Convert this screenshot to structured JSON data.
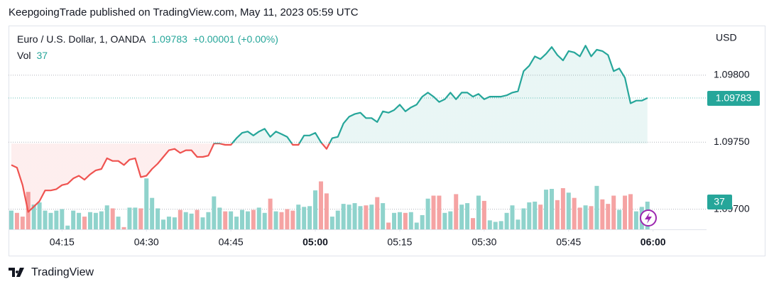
{
  "header": "KeepgoingTrade published on TradingView.com, May 11, 2023 05:59 UTC",
  "footer": "TradingView",
  "chart_data": {
    "type": "line",
    "currency": "USD",
    "change": "+0.00001",
    "change_pct": "(+0.00%)",
    "baseline": 1.09749,
    "color_below": "#ef5350",
    "grid": true,
    "x": [
      246,
      247,
      248,
      249,
      250,
      251,
      252,
      253,
      254,
      255,
      256,
      257,
      258,
      259,
      260,
      261,
      262,
      263,
      264,
      265,
      266,
      267,
      268,
      269,
      270,
      271,
      272,
      273,
      274,
      275,
      276,
      277,
      278,
      279,
      280,
      281,
      282,
      283,
      284,
      285,
      286,
      287,
      288,
      289,
      290,
      291,
      292,
      293,
      294,
      295,
      296,
      297,
      298,
      299,
      300,
      301,
      302,
      303,
      304,
      305,
      306,
      307,
      308,
      309,
      310,
      311,
      312,
      313,
      314,
      315,
      316,
      317,
      318,
      319,
      320,
      321,
      322,
      323,
      324,
      325,
      326,
      327,
      328,
      329,
      330,
      331,
      332,
      333,
      334,
      335,
      336,
      337,
      338,
      339,
      340,
      341,
      342,
      343,
      344,
      345,
      346,
      347,
      348,
      349,
      350,
      351,
      352,
      353,
      354,
      355,
      356,
      357,
      358,
      359
    ],
    "xlim": [
      245.5,
      369.5
    ],
    "xticks": [
      {
        "value": 255,
        "label": "04:15"
      },
      {
        "value": 270,
        "label": "04:30"
      },
      {
        "value": 285,
        "label": "04:45"
      },
      {
        "value": 300,
        "label": "05:00"
      },
      {
        "value": 315,
        "label": "05:15"
      },
      {
        "value": 330,
        "label": "05:30"
      },
      {
        "value": 345,
        "label": "05:45"
      },
      {
        "value": 360,
        "label": "06:00"
      }
    ],
    "ylim": [
      1.09685,
      1.09837
    ],
    "yticks": [
      {
        "value": 1.098,
        "label": "1.09800"
      },
      {
        "value": 1.0975,
        "label": "1.09750"
      },
      {
        "value": 1.097,
        "label": "1.09700"
      }
    ],
    "y2lim": [
      0,
      272
    ],
    "series": [
      {
        "name": "Euro / U.S. Dollar, 1, OANDA",
        "color": "#26a69a",
        "values": [
          1.09733,
          1.09731,
          1.09718,
          1.09698,
          1.09702,
          1.09706,
          1.09714,
          1.09714,
          1.09715,
          1.09718,
          1.09719,
          1.09723,
          1.09725,
          1.09722,
          1.09726,
          1.09729,
          1.0973,
          1.09738,
          1.09736,
          1.09736,
          1.09733,
          1.09737,
          1.09738,
          1.09724,
          1.09725,
          1.0973,
          1.09734,
          1.09739,
          1.09744,
          1.09745,
          1.09742,
          1.09744,
          1.09744,
          1.09739,
          1.09739,
          1.0974,
          1.09749,
          1.09749,
          1.09748,
          1.09748,
          1.09753,
          1.09757,
          1.09758,
          1.09755,
          1.09758,
          1.0976,
          1.09754,
          1.09758,
          1.09756,
          1.09754,
          1.09748,
          1.09748,
          1.09755,
          1.09755,
          1.09757,
          1.0975,
          1.09745,
          1.09753,
          1.09754,
          1.09764,
          1.09769,
          1.09771,
          1.09772,
          1.09768,
          1.09768,
          1.09765,
          1.09773,
          1.09772,
          1.09774,
          1.09778,
          1.09773,
          1.09776,
          1.09778,
          1.09784,
          1.09787,
          1.09784,
          1.0978,
          1.09782,
          1.09787,
          1.09782,
          1.09787,
          1.09787,
          1.09784,
          1.09786,
          1.09782,
          1.09784,
          1.09784,
          1.09784,
          1.09785,
          1.09787,
          1.09788,
          1.09803,
          1.09807,
          1.09814,
          1.09812,
          1.09816,
          1.09821,
          1.09815,
          1.09811,
          1.09818,
          1.09817,
          1.09814,
          1.09822,
          1.09814,
          1.09819,
          1.09818,
          1.09815,
          1.09803,
          1.09805,
          1.09798,
          1.09779,
          1.09781,
          1.09781,
          1.09783
        ]
      },
      {
        "name": "Vol",
        "type": "bar",
        "axis": "y2",
        "color": "#8fd3cc",
        "color_down": "#f5a3a3",
        "values": [
          25,
          22,
          17,
          50,
          33,
          36,
          25,
          22,
          25,
          27,
          5,
          25,
          22,
          17,
          23,
          22,
          24,
          32,
          28,
          17,
          3,
          29,
          29,
          28,
          68,
          42,
          28,
          13,
          17,
          16,
          26,
          23,
          21,
          26,
          16,
          23,
          44,
          29,
          24,
          24,
          17,
          26,
          24,
          26,
          29,
          22,
          41,
          24,
          23,
          27,
          25,
          33,
          30,
          31,
          52,
          64,
          48,
          17,
          25,
          34,
          33,
          35,
          31,
          32,
          33,
          43,
          35,
          9,
          22,
          23,
          22,
          23,
          9,
          19,
          41,
          45,
          45,
          22,
          24,
          47,
          33,
          35,
          15,
          45,
          38,
          12,
          10,
          11,
          22,
          32,
          13,
          28,
          36,
          37,
          33,
          53,
          54,
          39,
          55,
          49,
          42,
          29,
          32,
          31,
          58,
          40,
          34,
          45,
          26,
          45,
          47,
          24,
          30,
          37
        ]
      }
    ]
  }
}
